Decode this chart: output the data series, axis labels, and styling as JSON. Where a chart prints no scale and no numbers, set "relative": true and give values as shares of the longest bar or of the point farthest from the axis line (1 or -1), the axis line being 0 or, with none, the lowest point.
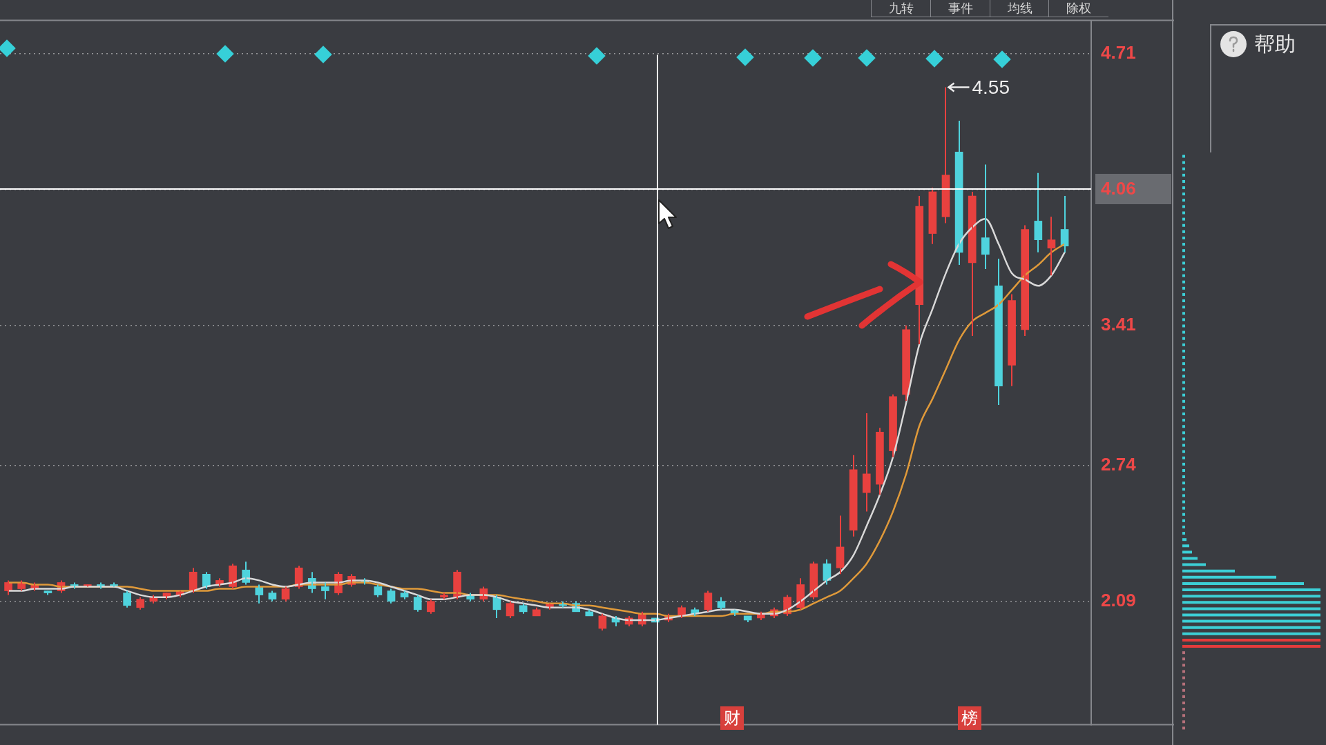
{
  "chart_data": [
    {
      "type": "candlestick",
      "categories": [
        null,
        null,
        null,
        null,
        null,
        null,
        null,
        null,
        null,
        null,
        null,
        null,
        null,
        null,
        null,
        null,
        null,
        null,
        null,
        null,
        null,
        null,
        null,
        null,
        null,
        null,
        null,
        null,
        null,
        null,
        null,
        null,
        null,
        null,
        null,
        null,
        null,
        null,
        null,
        null,
        null,
        null,
        null,
        null,
        null,
        null,
        null,
        null,
        null,
        null,
        null,
        null,
        null,
        null,
        null,
        null,
        null,
        null,
        null,
        null,
        null,
        null,
        null,
        null,
        null,
        null,
        null,
        null,
        null,
        null,
        null,
        null,
        null,
        null,
        null,
        null,
        null,
        null,
        null,
        null,
        null
      ],
      "ohlc": [
        [
          2.14,
          2.19,
          2.12,
          2.18
        ],
        [
          2.15,
          2.19,
          2.14,
          2.18
        ],
        [
          2.15,
          2.18,
          2.14,
          2.17
        ],
        [
          2.14,
          2.14,
          2.12,
          2.13
        ],
        [
          2.14,
          2.19,
          2.13,
          2.18
        ],
        [
          2.17,
          2.18,
          2.15,
          2.16
        ],
        [
          2.16,
          2.17,
          2.16,
          2.17
        ],
        [
          2.17,
          2.18,
          2.15,
          2.16
        ],
        [
          2.17,
          2.18,
          2.16,
          2.16
        ],
        [
          2.13,
          2.14,
          2.06,
          2.07
        ],
        [
          2.06,
          2.11,
          2.05,
          2.1
        ],
        [
          2.09,
          2.12,
          2.08,
          2.11
        ],
        [
          2.11,
          2.13,
          2.1,
          2.13
        ],
        [
          2.12,
          2.14,
          2.11,
          2.14
        ],
        [
          2.14,
          2.25,
          2.13,
          2.23
        ],
        [
          2.22,
          2.23,
          2.15,
          2.16
        ],
        [
          2.17,
          2.2,
          2.16,
          2.19
        ],
        [
          2.16,
          2.27,
          2.15,
          2.26
        ],
        [
          2.24,
          2.28,
          2.17,
          2.18
        ],
        [
          2.16,
          2.17,
          2.08,
          2.12
        ],
        [
          2.13,
          2.14,
          2.09,
          2.1
        ],
        [
          2.1,
          2.16,
          2.09,
          2.15
        ],
        [
          2.16,
          2.26,
          2.15,
          2.25
        ],
        [
          2.2,
          2.23,
          2.13,
          2.15
        ],
        [
          2.16,
          2.18,
          2.1,
          2.14
        ],
        [
          2.13,
          2.23,
          2.12,
          2.22
        ],
        [
          2.17,
          2.22,
          2.16,
          2.21
        ],
        [
          2.19,
          2.2,
          2.17,
          2.18
        ],
        [
          2.16,
          2.17,
          2.11,
          2.12
        ],
        [
          2.14,
          2.15,
          2.08,
          2.09
        ],
        [
          2.13,
          2.14,
          2.1,
          2.11
        ],
        [
          2.11,
          2.12,
          2.04,
          2.05
        ],
        [
          2.04,
          2.1,
          2.03,
          2.09
        ],
        [
          2.11,
          2.13,
          2.1,
          2.12
        ],
        [
          2.11,
          2.24,
          2.1,
          2.23
        ],
        [
          2.12,
          2.13,
          2.09,
          2.1
        ],
        [
          2.1,
          2.16,
          2.09,
          2.15
        ],
        [
          2.11,
          2.12,
          2.01,
          2.05
        ],
        [
          2.02,
          2.09,
          2.01,
          2.08
        ],
        [
          2.07,
          2.08,
          2.03,
          2.04
        ],
        [
          2.02,
          2.06,
          2.02,
          2.05
        ],
        [
          2.06,
          2.08,
          2.05,
          2.08
        ],
        [
          2.08,
          2.09,
          2.06,
          2.07
        ],
        [
          2.08,
          2.09,
          2.04,
          2.04
        ],
        [
          2.04,
          2.05,
          2.02,
          2.02
        ],
        [
          1.96,
          2.03,
          1.95,
          2.02
        ],
        [
          2.01,
          2.02,
          1.97,
          1.99
        ],
        [
          1.98,
          2.02,
          1.97,
          2.01
        ],
        [
          1.98,
          2.04,
          1.97,
          2.03
        ],
        [
          2.01,
          2.01,
          1.99,
          1.99
        ],
        [
          2.0,
          2.03,
          1.99,
          2.02
        ],
        [
          2.02,
          2.07,
          2.01,
          2.06
        ],
        [
          2.05,
          2.06,
          2.02,
          2.03
        ],
        [
          2.05,
          2.14,
          2.04,
          2.13
        ],
        [
          2.09,
          2.11,
          2.05,
          2.06
        ],
        [
          2.05,
          2.05,
          2.02,
          2.03
        ],
        [
          2.02,
          2.02,
          1.99,
          2.0
        ],
        [
          2.01,
          2.04,
          2.0,
          2.03
        ],
        [
          2.02,
          2.06,
          2.01,
          2.05
        ],
        [
          2.03,
          2.12,
          2.02,
          2.11
        ],
        [
          2.06,
          2.2,
          2.05,
          2.17
        ],
        [
          2.11,
          2.28,
          2.1,
          2.27
        ],
        [
          2.27,
          2.29,
          2.17,
          2.19
        ],
        [
          2.25,
          2.5,
          2.22,
          2.35
        ],
        [
          2.43,
          2.79,
          2.4,
          2.72
        ],
        [
          2.61,
          2.99,
          2.52,
          2.7
        ],
        [
          2.65,
          2.92,
          2.6,
          2.9
        ],
        [
          2.81,
          3.08,
          2.78,
          3.07
        ],
        [
          3.08,
          3.41,
          3.05,
          3.39
        ],
        [
          3.51,
          4.03,
          3.32,
          3.98
        ],
        [
          3.85,
          4.07,
          3.8,
          4.05
        ],
        [
          3.93,
          4.55,
          3.9,
          4.13
        ],
        [
          4.24,
          4.39,
          3.7,
          3.76
        ],
        [
          3.71,
          4.05,
          3.36,
          4.03
        ],
        [
          3.83,
          4.18,
          3.68,
          3.75
        ],
        [
          3.6,
          3.73,
          3.03,
          3.12
        ],
        [
          3.22,
          3.56,
          3.12,
          3.53
        ],
        [
          3.39,
          3.89,
          3.36,
          3.87
        ],
        [
          3.91,
          4.14,
          3.76,
          3.82
        ],
        [
          3.78,
          3.93,
          3.65,
          3.82
        ],
        [
          3.87,
          4.03,
          3.76,
          3.79
        ]
      ],
      "colors": [
        "#e8413f",
        "#e8413f",
        "#e8413f",
        "#4fd3dd",
        "#e8413f",
        "#4fd3dd",
        "#e8413f",
        "#4fd3dd",
        "#4fd3dd",
        "#4fd3dd",
        "#e8413f",
        "#e8413f",
        "#e8413f",
        "#e8413f",
        "#e8413f",
        "#4fd3dd",
        "#e8413f",
        "#e8413f",
        "#4fd3dd",
        "#4fd3dd",
        "#4fd3dd",
        "#e8413f",
        "#e8413f",
        "#4fd3dd",
        "#4fd3dd",
        "#e8413f",
        "#e8413f",
        "#4fd3dd",
        "#4fd3dd",
        "#4fd3dd",
        "#4fd3dd",
        "#4fd3dd",
        "#e8413f",
        "#e8413f",
        "#e8413f",
        "#4fd3dd",
        "#e8413f",
        "#4fd3dd",
        "#e8413f",
        "#4fd3dd",
        "#e8413f",
        "#e8413f",
        "#4fd3dd",
        "#4fd3dd",
        "#4fd3dd",
        "#e8413f",
        "#4fd3dd",
        "#e8413f",
        "#e8413f",
        "#4fd3dd",
        "#e8413f",
        "#e8413f",
        "#4fd3dd",
        "#e8413f",
        "#4fd3dd",
        "#4fd3dd",
        "#4fd3dd",
        "#e8413f",
        "#e8413f",
        "#e8413f",
        "#e8413f",
        "#e8413f",
        "#4fd3dd",
        "#e8413f",
        "#e8413f",
        "#e8413f",
        "#e8413f",
        "#e8413f",
        "#e8413f",
        "#e8413f",
        "#e8413f",
        "#e8413f",
        "#4fd3dd",
        "#e8413f",
        "#4fd3dd",
        "#4fd3dd",
        "#e8413f",
        "#e8413f",
        "#4fd3dd",
        "#e8413f",
        "#4fd3dd"
      ],
      "series": [
        {
          "type": "line",
          "color": "#d9d9d9",
          "values": [
            2.14,
            2.14,
            2.15,
            2.15,
            2.15,
            2.16,
            2.16,
            2.16,
            2.16,
            2.14,
            2.12,
            2.11,
            2.11,
            2.12,
            2.14,
            2.16,
            2.17,
            2.18,
            2.2,
            2.19,
            2.17,
            2.16,
            2.17,
            2.18,
            2.18,
            2.18,
            2.19,
            2.19,
            2.18,
            2.16,
            2.14,
            2.12,
            2.1,
            2.1,
            2.11,
            2.12,
            2.12,
            2.11,
            2.09,
            2.08,
            2.07,
            2.06,
            2.06,
            2.06,
            2.05,
            2.03,
            2.01,
            2.0,
            2.0,
            2.0,
            2.01,
            2.02,
            2.03,
            2.04,
            2.05,
            2.05,
            2.04,
            2.03,
            2.03,
            2.05,
            2.09,
            2.14,
            2.19,
            2.23,
            2.31,
            2.45,
            2.6,
            2.78,
            3.04,
            3.32,
            3.49,
            3.66,
            3.8,
            3.88,
            3.92,
            3.8,
            3.66,
            3.63,
            3.6,
            3.65,
            3.76
          ]
        },
        {
          "type": "line",
          "color": "#e09a3a",
          "values": [
            2.18,
            2.18,
            2.17,
            2.17,
            2.16,
            2.16,
            2.16,
            2.16,
            2.16,
            2.16,
            2.15,
            2.14,
            2.14,
            2.14,
            2.14,
            2.14,
            2.15,
            2.15,
            2.16,
            2.16,
            2.16,
            2.16,
            2.17,
            2.17,
            2.17,
            2.17,
            2.18,
            2.18,
            2.17,
            2.16,
            2.15,
            2.15,
            2.14,
            2.13,
            2.13,
            2.12,
            2.12,
            2.12,
            2.11,
            2.1,
            2.09,
            2.08,
            2.08,
            2.07,
            2.07,
            2.06,
            2.05,
            2.04,
            2.03,
            2.03,
            2.02,
            2.02,
            2.02,
            2.02,
            2.02,
            2.03,
            2.03,
            2.03,
            2.04,
            2.04,
            2.05,
            2.08,
            2.11,
            2.14,
            2.2,
            2.27,
            2.38,
            2.52,
            2.7,
            2.93,
            3.06,
            3.2,
            3.34,
            3.43,
            3.47,
            3.51,
            3.58,
            3.65,
            3.7,
            3.76,
            3.8
          ]
        }
      ],
      "ylim": [
        1.5,
        4.87
      ],
      "yticks": [
        2.09,
        2.74,
        3.41,
        4.06,
        4.71
      ],
      "grid": "y",
      "tick_labels": "y",
      "annotations": [
        "九转",
        "事件",
        "均线",
        "除权",
        "帮助",
        "财",
        "榜",
        "4.55"
      ]
    },
    {
      "type": "bar",
      "orientation": "horizontal",
      "relative": true,
      "categories": [
        null,
        null,
        null,
        null,
        null,
        null,
        null,
        null,
        null,
        null,
        null,
        null,
        null,
        null,
        null,
        null,
        null,
        null,
        null,
        null,
        null,
        null,
        null,
        null,
        null,
        null,
        null,
        null,
        null,
        null,
        null,
        null,
        null,
        null,
        null,
        null,
        null,
        null,
        null,
        null,
        null,
        null,
        null,
        null,
        null,
        null,
        null,
        null,
        null,
        null,
        null,
        null,
        null,
        null,
        null,
        null,
        null,
        null,
        null,
        null,
        null,
        null,
        null,
        null,
        null,
        null,
        null,
        null,
        null,
        null,
        null,
        null,
        null,
        null,
        null,
        null,
        null,
        null,
        null,
        null,
        null,
        null,
        null,
        null,
        null,
        null,
        null,
        null,
        null,
        null,
        null,
        null
      ],
      "values": [
        0.02,
        0.02,
        0.02,
        0.02,
        0.02,
        0.02,
        0.02,
        0.02,
        0.02,
        0.02,
        0.02,
        0.02,
        0.02,
        0.02,
        0.02,
        0.02,
        0.02,
        0.02,
        0.02,
        0.02,
        0.02,
        0.02,
        0.02,
        0.02,
        0.02,
        0.02,
        0.02,
        0.02,
        0.02,
        0.02,
        0.02,
        0.02,
        0.02,
        0.02,
        0.02,
        0.02,
        0.02,
        0.02,
        0.02,
        0.02,
        0.02,
        0.02,
        0.02,
        0.02,
        0.02,
        0.02,
        0.02,
        0.02,
        0.02,
        0.02,
        0.02,
        0.02,
        0.02,
        0.02,
        0.02,
        0.02,
        0.02,
        0.02,
        0.02,
        0.02,
        0.02,
        0.03,
        0.05,
        0.07,
        0.11,
        0.17,
        0.38,
        0.68,
        0.88,
        1,
        1,
        1,
        1,
        1,
        1,
        1,
        1,
        1,
        1,
        0.02,
        0.02,
        0.02,
        0.02,
        0.02,
        0.02,
        0.02,
        0.02,
        0.02,
        0.02,
        0.02,
        0.02,
        0.02
      ],
      "colors": [
        "#3ccfd6",
        "#3ccfd6",
        "#3ccfd6",
        "#3ccfd6",
        "#3ccfd6",
        "#3ccfd6",
        "#3ccfd6",
        "#3ccfd6",
        "#3ccfd6",
        "#3ccfd6",
        "#3ccfd6",
        "#3ccfd6",
        "#3ccfd6",
        "#3ccfd6",
        "#3ccfd6",
        "#3ccfd6",
        "#3ccfd6",
        "#3ccfd6",
        "#3ccfd6",
        "#3ccfd6",
        "#3ccfd6",
        "#3ccfd6",
        "#3ccfd6",
        "#3ccfd6",
        "#3ccfd6",
        "#3ccfd6",
        "#3ccfd6",
        "#3ccfd6",
        "#3ccfd6",
        "#3ccfd6",
        "#3ccfd6",
        "#3ccfd6",
        "#3ccfd6",
        "#3ccfd6",
        "#3ccfd6",
        "#3ccfd6",
        "#3ccfd6",
        "#3ccfd6",
        "#3ccfd6",
        "#3ccfd6",
        "#3ccfd6",
        "#3ccfd6",
        "#3ccfd6",
        "#3ccfd6",
        "#3ccfd6",
        "#3ccfd6",
        "#3ccfd6",
        "#3ccfd6",
        "#3ccfd6",
        "#3ccfd6",
        "#3ccfd6",
        "#3ccfd6",
        "#3ccfd6",
        "#3ccfd6",
        "#3ccfd6",
        "#3ccfd6",
        "#3ccfd6",
        "#3ccfd6",
        "#3ccfd6",
        "#3ccfd6",
        "#3ccfd6",
        "#3ccfd6",
        "#3ccfd6",
        "#3ccfd6",
        "#3ccfd6",
        "#3ccfd6",
        "#3ccfd6",
        "#3ccfd6",
        "#3ccfd6",
        "#3ccfd6",
        "#3ccfd6",
        "#3ccfd6",
        "#3ccfd6",
        "#3ccfd6",
        "#3ccfd6",
        "#3ccfd6",
        "#3ccfd6",
        "#e33b3b",
        "#e33b3b",
        "#b5707a",
        "#b5707a",
        "#b5707a",
        "#b5707a",
        "#b5707a",
        "#b5707a",
        "#b5707a",
        "#b5707a",
        "#b5707a",
        "#b5707a",
        "#b5707a",
        "#b5707a",
        "#b5707a"
      ]
    }
  ]
}
